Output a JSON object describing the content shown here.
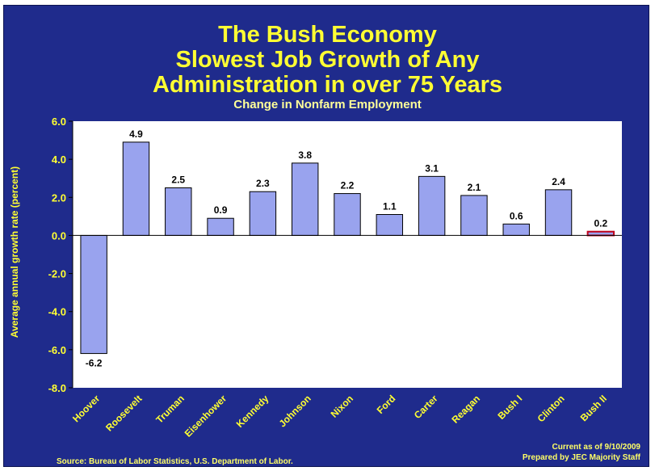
{
  "chart_data": {
    "type": "bar",
    "title_lines": [
      "The Bush Economy",
      "Slowest Job Growth of Any",
      "Administration in over 75 Years"
    ],
    "subtitle": "Change in Nonfarm Employment",
    "ylabel": "Average annual growth rate (percent)",
    "xlabel": "",
    "categories": [
      "Hoover",
      "Roosevelt",
      "Truman",
      "Eisenhower",
      "Kennedy",
      "Johnson",
      "Nixon",
      "Ford",
      "Carter",
      "Reagan",
      "Bush I",
      "Clinton",
      "Bush II"
    ],
    "values": [
      -6.2,
      4.9,
      2.5,
      0.9,
      2.3,
      3.8,
      2.2,
      1.1,
      3.1,
      2.1,
      0.6,
      2.4,
      0.2
    ],
    "data_labels": [
      "-6.2",
      "4.9",
      "2.5",
      "0.9",
      "2.3",
      "3.8",
      "2.2",
      "1.1",
      "3.1",
      "2.1",
      "0.6",
      "2.4",
      "0.2"
    ],
    "ylim": [
      -8.0,
      6.0
    ],
    "yticks": [
      "6.0",
      "4.0",
      "2.0",
      "0.0",
      "-2.0",
      "-4.0",
      "-6.0",
      "-8.0"
    ],
    "grid": false,
    "legend": "none",
    "colors": {
      "bar": "#99a3ee",
      "highlight_bar": "#c0001a",
      "background": "#1f2b8c",
      "text": "#ffff33"
    },
    "highlight_category": "Bush II"
  },
  "footer": {
    "source": "Source: Bureau of Labor Statistics, U.S. Department of Labor.",
    "current": "Current as of 9/10/2009",
    "prepared": "Prepared by JEC Majority Staff"
  }
}
